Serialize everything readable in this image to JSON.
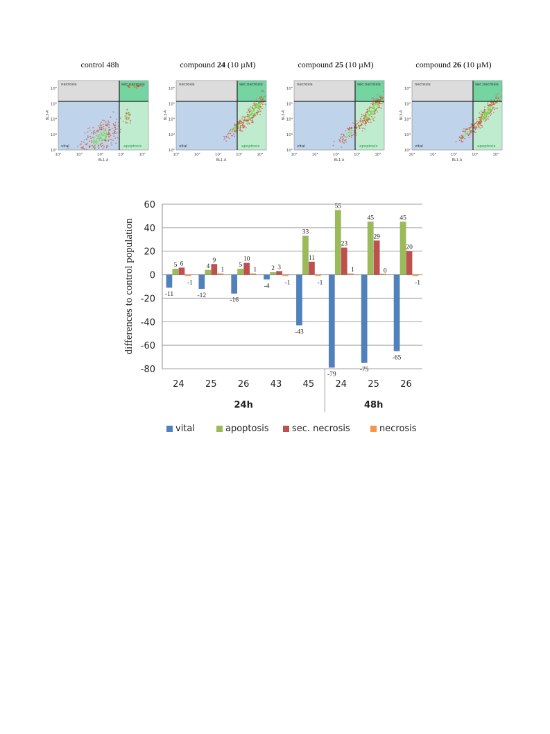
{
  "scatter_panels": [
    {
      "title": "control 48h",
      "ylabel": "BL3-A",
      "xlabel": "BL1-A",
      "ticks": [
        "10²",
        "10³",
        "10⁴",
        "10⁵",
        "10⁶"
      ],
      "quadrants": {
        "top_left": "necrosis",
        "top_right": "sec.necrosis",
        "bottom_left": "vital",
        "bottom_right": "apoptosis"
      }
    },
    {
      "title": "compound 24 (10 µM)",
      "ylabel": "BL3-A",
      "xlabel": "BL1-A",
      "ticks": [
        "10²",
        "10³",
        "10⁴",
        "10⁵",
        "10⁶"
      ],
      "quadrants": {
        "top_left": "necrosis",
        "top_right": "sec.necrosis",
        "bottom_left": "vital",
        "bottom_right": "apoptosis"
      }
    },
    {
      "title": "compound 25 (10 µM)",
      "ylabel": "BL3-A",
      "xlabel": "BL1-A",
      "ticks": [
        "10²",
        "10³",
        "10⁴",
        "10⁵",
        "10⁶"
      ],
      "quadrants": {
        "top_left": "necrosis",
        "top_right": "sec.necrosis",
        "bottom_left": "vital",
        "bottom_right": "apoptosis"
      }
    },
    {
      "title": "compound 26 (10 µM)",
      "ylabel": "BL3-A",
      "xlabel": "BL1-A",
      "ticks": [
        "10²",
        "10³",
        "10⁴",
        "10⁵",
        "10⁶"
      ],
      "quadrants": {
        "top_left": "necrosis",
        "top_right": "sec.necrosis",
        "bottom_left": "vital",
        "bottom_right": "apoptosis"
      }
    }
  ],
  "chart_data": {
    "type": "bar",
    "ylabel": "differences to control population",
    "ylim": [
      -80,
      60
    ],
    "yticks": [
      60,
      40,
      20,
      0,
      -20,
      -40,
      -60,
      -80
    ],
    "categories": [
      "24",
      "25",
      "26",
      "43",
      "45",
      "24",
      "25",
      "26"
    ],
    "groups": [
      {
        "label": "24h",
        "categories": [
          "24",
          "25",
          "26",
          "43",
          "45"
        ]
      },
      {
        "label": "48h",
        "categories": [
          "24",
          "25",
          "26"
        ]
      }
    ],
    "series": [
      {
        "name": "vital",
        "color": "#4f81bd",
        "values": [
          -11,
          -12,
          -16,
          -4,
          -43,
          -79,
          -75,
          -65
        ]
      },
      {
        "name": "apoptosis",
        "color": "#9bbb59",
        "values": [
          5,
          4,
          5,
          2,
          33,
          55,
          45,
          45
        ]
      },
      {
        "name": "sec. necrosis",
        "color": "#c0504d",
        "values": [
          6,
          9,
          10,
          3,
          11,
          23,
          29,
          20
        ]
      },
      {
        "name": "necrosis",
        "color": "#f79646",
        "values": [
          -1,
          1,
          1,
          -1,
          -1,
          1,
          0,
          -1
        ]
      }
    ],
    "legend_position": "bottom",
    "grid": true
  }
}
